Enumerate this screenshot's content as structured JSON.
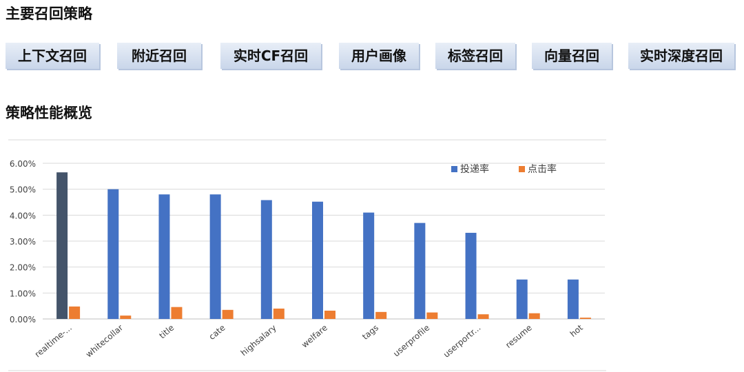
{
  "header": {
    "title": "主要召回策略"
  },
  "strategies": [
    "上下文召回",
    "附近召回",
    "实时CF召回",
    "用户画像",
    "标签召回",
    "向量召回",
    "实时深度召回"
  ],
  "section": {
    "title": "策略性能概览"
  },
  "colors": {
    "delivery": "#4472c4",
    "click": "#ed7d31",
    "first_bar": "#44546a"
  },
  "chart_data": {
    "type": "bar",
    "title": "",
    "xlabel": "",
    "ylabel": "",
    "categories": [
      "realtime-...",
      "whitecollar",
      "title",
      "cate",
      "highsalary",
      "welfare",
      "tags",
      "userprofile",
      "userportr...",
      "resume",
      "hot"
    ],
    "series": [
      {
        "name": "投递率",
        "values": [
          5.65,
          5.0,
          4.8,
          4.8,
          4.58,
          4.52,
          4.1,
          3.7,
          3.32,
          1.52,
          1.52
        ]
      },
      {
        "name": "点击率",
        "values": [
          0.48,
          0.13,
          0.46,
          0.35,
          0.4,
          0.32,
          0.27,
          0.25,
          0.18,
          0.22,
          0.05
        ]
      }
    ],
    "yticks": [
      "0.00%",
      "1.00%",
      "2.00%",
      "3.00%",
      "4.00%",
      "5.00%",
      "6.00%"
    ],
    "ylim": [
      0,
      6
    ],
    "grid": true,
    "legend": "top-right"
  }
}
